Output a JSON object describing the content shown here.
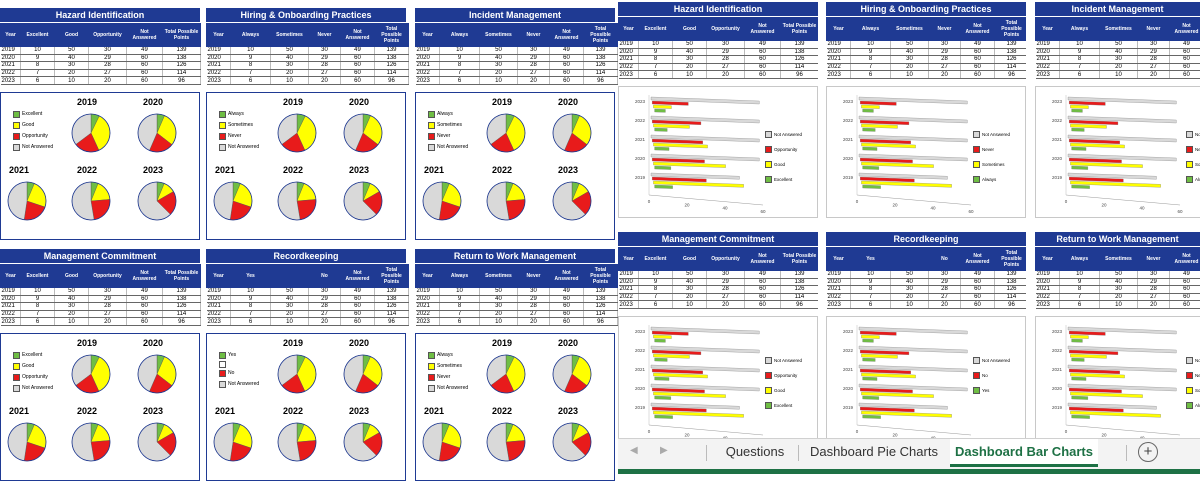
{
  "colors": {
    "header_blue": "#1f3a93",
    "excellent": "#6fbe44",
    "good": "#ffff00",
    "opportunity": "#e81b1b",
    "not_answered": "#d9d9d9",
    "tab_green": "#1e7145"
  },
  "year_labels": [
    "2019",
    "2020",
    "2021",
    "2022",
    "2023"
  ],
  "bar_axis_ticks": {
    "row1": [
      "0",
      "20",
      "40",
      "60"
    ],
    "row2": [
      "0",
      "20",
      "40"
    ]
  },
  "left_panels": [
    {
      "title": "Hazard Identification",
      "headers": [
        "Year",
        "Excellent",
        "Good",
        "Opportunity",
        "Not Answered",
        "Total Possible Points"
      ],
      "rows": [
        [
          "2019",
          "10",
          "50",
          "30",
          "49",
          "139"
        ],
        [
          "2020",
          "9",
          "40",
          "29",
          "60",
          "138"
        ],
        [
          "2021",
          "8",
          "30",
          "28",
          "60",
          "126"
        ],
        [
          "2022",
          "7",
          "20",
          "27",
          "60",
          "114"
        ],
        [
          "2023",
          "6",
          "10",
          "20",
          "60",
          "96"
        ]
      ],
      "legend": [
        "Excellent",
        "Good",
        "Opportunity",
        "Not Answered"
      ]
    },
    {
      "title": "Hiring & Onboarding Practices",
      "headers": [
        "Year",
        "Always",
        "Sometimes",
        "Never",
        "Not Answered",
        "Total Possible Points"
      ],
      "rows": [
        [
          "2019",
          "10",
          "50",
          "30",
          "49",
          "139"
        ],
        [
          "2020",
          "9",
          "40",
          "29",
          "60",
          "138"
        ],
        [
          "2021",
          "8",
          "30",
          "28",
          "60",
          "126"
        ],
        [
          "2022",
          "7",
          "20",
          "27",
          "60",
          "114"
        ],
        [
          "2023",
          "6",
          "10",
          "20",
          "60",
          "96"
        ]
      ],
      "legend": [
        "Always",
        "Sometimes",
        "Never",
        "Not Answered"
      ]
    },
    {
      "title": "Incident Management",
      "headers": [
        "Year",
        "Always",
        "Sometimes",
        "Never",
        "Not Answered",
        "Total Possible Points"
      ],
      "rows": [
        [
          "2019",
          "10",
          "50",
          "30",
          "49",
          "139"
        ],
        [
          "2020",
          "9",
          "40",
          "29",
          "60",
          "138"
        ],
        [
          "2021",
          "8",
          "30",
          "28",
          "60",
          "126"
        ],
        [
          "2022",
          "7",
          "20",
          "27",
          "60",
          "114"
        ],
        [
          "2023",
          "6",
          "10",
          "20",
          "60",
          "96"
        ]
      ],
      "legend": [
        "Always",
        "Sometimes",
        "Never",
        "Not Answered"
      ]
    },
    {
      "title": "Management Commitment",
      "headers": [
        "Year",
        "Excellent",
        "Good",
        "Opportunity",
        "Not Answered",
        "Total Possible Points"
      ],
      "rows": [
        [
          "2019",
          "10",
          "50",
          "30",
          "49",
          "139"
        ],
        [
          "2020",
          "9",
          "40",
          "29",
          "60",
          "138"
        ],
        [
          "2021",
          "8",
          "30",
          "28",
          "60",
          "126"
        ],
        [
          "2022",
          "7",
          "20",
          "27",
          "60",
          "114"
        ],
        [
          "2023",
          "6",
          "10",
          "20",
          "60",
          "96"
        ]
      ],
      "legend": [
        "Excellent",
        "Good",
        "Opportunity",
        "Not Answered"
      ]
    },
    {
      "title": "Recordkeeping",
      "headers": [
        "Year",
        "Yes",
        "",
        "No",
        "Not Answered",
        "Total Possible Points"
      ],
      "rows": [
        [
          "2019",
          "10",
          "50",
          "30",
          "49",
          "139"
        ],
        [
          "2020",
          "9",
          "40",
          "29",
          "60",
          "138"
        ],
        [
          "2021",
          "8",
          "30",
          "28",
          "60",
          "126"
        ],
        [
          "2022",
          "7",
          "20",
          "27",
          "60",
          "114"
        ],
        [
          "2023",
          "6",
          "10",
          "20",
          "60",
          "96"
        ]
      ],
      "legend": [
        "Yes",
        "",
        "No",
        "Not Answered"
      ]
    },
    {
      "title": "Return to Work Management",
      "headers": [
        "Year",
        "Always",
        "Sometimes",
        "Never",
        "Not Answered",
        "Total Possible Points"
      ],
      "rows": [
        [
          "2019",
          "10",
          "50",
          "30",
          "49",
          "139"
        ],
        [
          "2020",
          "9",
          "40",
          "29",
          "60",
          "138"
        ],
        [
          "2021",
          "8",
          "30",
          "28",
          "60",
          "126"
        ],
        [
          "2022",
          "7",
          "20",
          "27",
          "60",
          "114"
        ],
        [
          "2023",
          "6",
          "10",
          "20",
          "60",
          "96"
        ]
      ],
      "legend": [
        "Always",
        "Sometimes",
        "Never",
        "Not Answered"
      ]
    }
  ],
  "right_panels": [
    {
      "title": "Hazard Identification",
      "headers": [
        "Year",
        "Excellent",
        "Good",
        "Opportunity",
        "Not Answered",
        "Total Possible Points"
      ],
      "rows": [
        [
          "2019",
          "10",
          "50",
          "30",
          "49",
          "139"
        ],
        [
          "2020",
          "9",
          "40",
          "29",
          "60",
          "138"
        ],
        [
          "2021",
          "8",
          "30",
          "28",
          "60",
          "126"
        ],
        [
          "2022",
          "7",
          "20",
          "27",
          "60",
          "114"
        ],
        [
          "2023",
          "6",
          "10",
          "20",
          "60",
          "96"
        ]
      ],
      "legend": [
        "Not Answered",
        "Opportunity",
        "Good",
        "Excellent"
      ]
    },
    {
      "title": "Hiring & Onboarding Practices",
      "headers": [
        "Year",
        "Always",
        "Sometimes",
        "Never",
        "Not Answered",
        "Total Possible Points"
      ],
      "rows": [
        [
          "2019",
          "10",
          "50",
          "30",
          "49",
          "139"
        ],
        [
          "2020",
          "9",
          "40",
          "29",
          "60",
          "138"
        ],
        [
          "2021",
          "8",
          "30",
          "28",
          "60",
          "126"
        ],
        [
          "2022",
          "7",
          "20",
          "27",
          "60",
          "114"
        ],
        [
          "2023",
          "6",
          "10",
          "20",
          "60",
          "96"
        ]
      ],
      "legend": [
        "Not Answered",
        "Never",
        "Sometimes",
        "Always"
      ]
    },
    {
      "title": "Incident Management",
      "headers": [
        "Year",
        "Always",
        "Sometimes",
        "Never",
        "Not Answered",
        "Total Possible Points"
      ],
      "rows": [
        [
          "2019",
          "10",
          "50",
          "30",
          "49",
          "139"
        ],
        [
          "2020",
          "9",
          "40",
          "29",
          "60",
          "138"
        ],
        [
          "2021",
          "8",
          "30",
          "28",
          "60",
          "126"
        ],
        [
          "2022",
          "7",
          "20",
          "27",
          "60",
          "114"
        ],
        [
          "2023",
          "6",
          "10",
          "20",
          "60",
          "96"
        ]
      ],
      "legend": [
        "Not",
        "Nev",
        "Som",
        "Alwa"
      ]
    },
    {
      "title": "Management Commitment",
      "headers": [
        "Year",
        "Excellent",
        "Good",
        "Opportunity",
        "Not Answered",
        "Total Possible Points"
      ],
      "rows": [
        [
          "2019",
          "10",
          "50",
          "30",
          "49",
          "139"
        ],
        [
          "2020",
          "9",
          "40",
          "29",
          "60",
          "138"
        ],
        [
          "2021",
          "8",
          "30",
          "28",
          "60",
          "126"
        ],
        [
          "2022",
          "7",
          "20",
          "27",
          "60",
          "114"
        ],
        [
          "2023",
          "6",
          "10",
          "20",
          "60",
          "96"
        ]
      ],
      "legend": [
        "Not Answered",
        "Opportunity",
        "Good",
        "Excellent"
      ]
    },
    {
      "title": "Recordkeeping",
      "headers": [
        "Year",
        "Yes",
        "",
        "No",
        "Not Answered",
        "Total Possible Points"
      ],
      "rows": [
        [
          "2019",
          "10",
          "50",
          "30",
          "49",
          "139"
        ],
        [
          "2020",
          "9",
          "40",
          "29",
          "60",
          "138"
        ],
        [
          "2021",
          "8",
          "30",
          "28",
          "60",
          "126"
        ],
        [
          "2022",
          "7",
          "20",
          "27",
          "60",
          "114"
        ],
        [
          "2023",
          "6",
          "10",
          "20",
          "60",
          "96"
        ]
      ],
      "legend": [
        "Not Answered",
        "No",
        "Yes"
      ]
    },
    {
      "title": "Return to Work Management",
      "headers": [
        "Year",
        "Always",
        "Sometimes",
        "Never",
        "Not Answered",
        "Total Possible Points"
      ],
      "rows": [
        [
          "2019",
          "10",
          "50",
          "30",
          "49",
          "139"
        ],
        [
          "2020",
          "9",
          "40",
          "29",
          "60",
          "138"
        ],
        [
          "2021",
          "8",
          "30",
          "28",
          "60",
          "126"
        ],
        [
          "2022",
          "7",
          "20",
          "27",
          "60",
          "114"
        ],
        [
          "2023",
          "6",
          "10",
          "20",
          "60",
          "96"
        ]
      ],
      "legend": [
        "Not",
        "Neve",
        "Som",
        "Alwa"
      ]
    }
  ],
  "sheet_tabs": {
    "tabs": [
      "Questions",
      "Dashboard Pie Charts",
      "Dashboard Bar Charts"
    ],
    "active": "Dashboard Bar Charts",
    "prev_arrow": "◀",
    "next_arrow": "▶",
    "add_icon": "+"
  },
  "chart_data": [
    {
      "type": "pie",
      "title": "",
      "categories": [
        "Excellent",
        "Good",
        "Opportunity",
        "Not Answered"
      ],
      "series": [
        {
          "name": "2019",
          "values": [
            10,
            50,
            30,
            49
          ]
        },
        {
          "name": "2020",
          "values": [
            9,
            40,
            29,
            60
          ]
        },
        {
          "name": "2021",
          "values": [
            8,
            30,
            28,
            60
          ]
        },
        {
          "name": "2022",
          "values": [
            7,
            20,
            27,
            60
          ]
        },
        {
          "name": "2023",
          "values": [
            6,
            10,
            20,
            60
          ]
        }
      ]
    },
    {
      "type": "bar",
      "orientation": "horizontal",
      "categories": [
        "2019",
        "2020",
        "2021",
        "2022",
        "2023"
      ],
      "series": [
        {
          "name": "Not Answered",
          "values": [
            49,
            60,
            60,
            60,
            60
          ]
        },
        {
          "name": "Opportunity",
          "values": [
            30,
            29,
            28,
            27,
            20
          ]
        },
        {
          "name": "Good",
          "values": [
            50,
            40,
            30,
            20,
            10
          ]
        },
        {
          "name": "Excellent",
          "values": [
            10,
            9,
            8,
            7,
            6
          ]
        }
      ],
      "xlim": [
        0,
        60
      ]
    }
  ]
}
